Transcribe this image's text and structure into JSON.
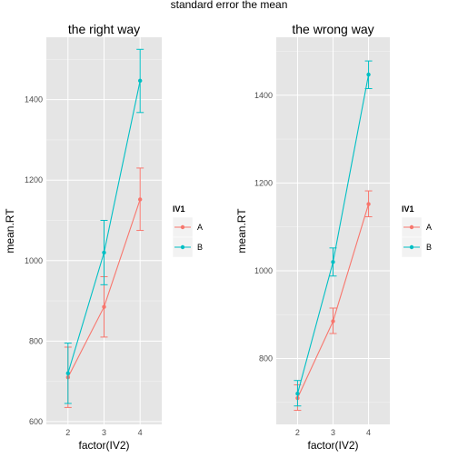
{
  "page": {
    "title": "standard error the mean"
  },
  "colors": {
    "A": "#F8766D",
    "B": "#00BFC4",
    "panel": "#E5E5E5"
  },
  "chart_data": [
    {
      "type": "line",
      "title": "the right way",
      "xlabel": "factor(IV2)",
      "ylabel": "mean.RT",
      "categories": [
        "2",
        "3",
        "4"
      ],
      "ylim": [
        593,
        1555
      ],
      "yticks": [
        600,
        800,
        1000,
        1200,
        1400
      ],
      "grid": true,
      "legend": {
        "title": "IV1",
        "position": "right",
        "entries": [
          "A",
          "B"
        ]
      },
      "series": [
        {
          "name": "A",
          "values": [
            710,
            885,
            1152
          ],
          "err_low": [
            635,
            810,
            1075
          ],
          "err_high": [
            785,
            960,
            1230
          ]
        },
        {
          "name": "B",
          "values": [
            720,
            1020,
            1447
          ],
          "err_low": [
            645,
            940,
            1368
          ],
          "err_high": [
            795,
            1100,
            1525
          ]
        }
      ]
    },
    {
      "type": "line",
      "title": "the wrong way",
      "xlabel": "factor(IV2)",
      "ylabel": "mean.RT",
      "categories": [
        "2",
        "3",
        "4"
      ],
      "ylim": [
        650,
        1532
      ],
      "yticks": [
        800,
        1000,
        1200,
        1400
      ],
      "grid": true,
      "legend": {
        "title": "IV1",
        "position": "right",
        "entries": [
          "A",
          "B"
        ]
      },
      "series": [
        {
          "name": "A",
          "values": [
            710,
            885,
            1152
          ],
          "err_low": [
            682,
            857,
            1123
          ],
          "err_high": [
            740,
            915,
            1182
          ]
        },
        {
          "name": "B",
          "values": [
            720,
            1020,
            1447
          ],
          "err_low": [
            692,
            988,
            1415
          ],
          "err_high": [
            750,
            1052,
            1478
          ]
        }
      ]
    }
  ]
}
